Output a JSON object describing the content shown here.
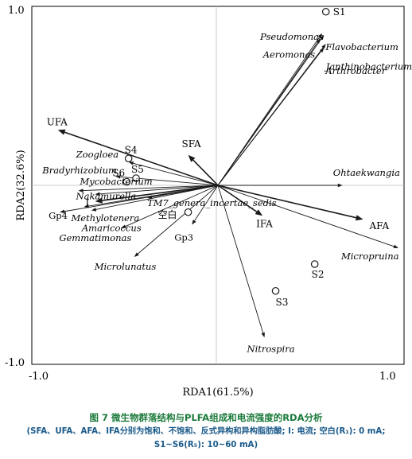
{
  "chart_data": {
    "type": "scatter",
    "xlabel": "RDA1(61.5%)",
    "ylabel": "RDA2(32.6%)",
    "xlim": [
      -1.0,
      1.0
    ],
    "ylim": [
      -1.0,
      1.0
    ],
    "xticks": [
      "-1.0",
      "1.0"
    ],
    "yticks": [
      "1.0",
      "-1.0"
    ],
    "grid": false,
    "env_arrows": [
      {
        "name": "UFA",
        "x": -0.86,
        "y": 0.31
      },
      {
        "name": "SFA",
        "x": -0.16,
        "y": 0.17
      },
      {
        "name": "AFA",
        "x": 0.78,
        "y": -0.19
      },
      {
        "name": "IFA",
        "x": 0.24,
        "y": -0.17
      },
      {
        "name": "I",
        "x": -0.66,
        "y": -0.09
      }
    ],
    "species_arrows": [
      {
        "name": "Pseudomonas",
        "x": 0.56,
        "y": 0.85
      },
      {
        "name": "Flavobacterium",
        "x": 0.57,
        "y": 0.84
      },
      {
        "name": "Aeromonas",
        "x": 0.55,
        "y": 0.82
      },
      {
        "name": "Janthinobacterium",
        "x": 0.58,
        "y": 0.79
      },
      {
        "name": "Arthrobacter",
        "x": 0.57,
        "y": 0.77
      },
      {
        "name": "Ohtaekwangia",
        "x": 0.67,
        "y": 0.0
      },
      {
        "name": "Micropruina",
        "x": 0.97,
        "y": -0.35
      },
      {
        "name": "Nitrospira",
        "x": 0.25,
        "y": -0.85
      },
      {
        "name": "Zoogloea",
        "x": -0.48,
        "y": 0.13
      },
      {
        "name": "Bradyrhizobium",
        "x": -0.55,
        "y": 0.05
      },
      {
        "name": "Mycobacterium",
        "x": -0.75,
        "y": -0.03
      },
      {
        "name": "Nakamurella",
        "x": -0.66,
        "y": -0.05
      },
      {
        "name": "TM7_genera_incertae_sedis",
        "x": -0.38,
        "y": -0.07
      },
      {
        "name": "Methylotenera",
        "x": -0.72,
        "y": -0.12
      },
      {
        "name": "Amaricoccus",
        "x": -0.68,
        "y": -0.14
      },
      {
        "name": "Gemmatimonas",
        "x": -0.52,
        "y": -0.24
      },
      {
        "name": "Gp3",
        "x": -0.14,
        "y": -0.22
      },
      {
        "name": "Gp4",
        "x": -0.85,
        "y": -0.15
      },
      {
        "name": "Microlunatus",
        "x": -0.45,
        "y": -0.4
      }
    ],
    "samples": [
      {
        "name": "S1",
        "x": 0.58,
        "y": 0.97
      },
      {
        "name": "S2",
        "x": 0.52,
        "y": -0.44
      },
      {
        "name": "S3",
        "x": 0.31,
        "y": -0.59
      },
      {
        "name": "S4",
        "x": -0.48,
        "y": 0.15
      },
      {
        "name": "S5",
        "x": -0.44,
        "y": 0.04
      },
      {
        "name": "S6",
        "x": -0.49,
        "y": 0.02
      },
      {
        "name": "空白",
        "x": -0.16,
        "y": -0.15
      }
    ]
  },
  "caption": {
    "figure_label": "图 7",
    "title": "微生物群落结构与PLFA组成和电流强度的RDA分析",
    "note": "(SFA、UFA、AFA、IFA分别为饱和、不饱和、反式异构和异构脂肪酸; I: 电流; 空白(R₁): 0 mA; S1~S6(R₅): 10~60 mA)"
  }
}
